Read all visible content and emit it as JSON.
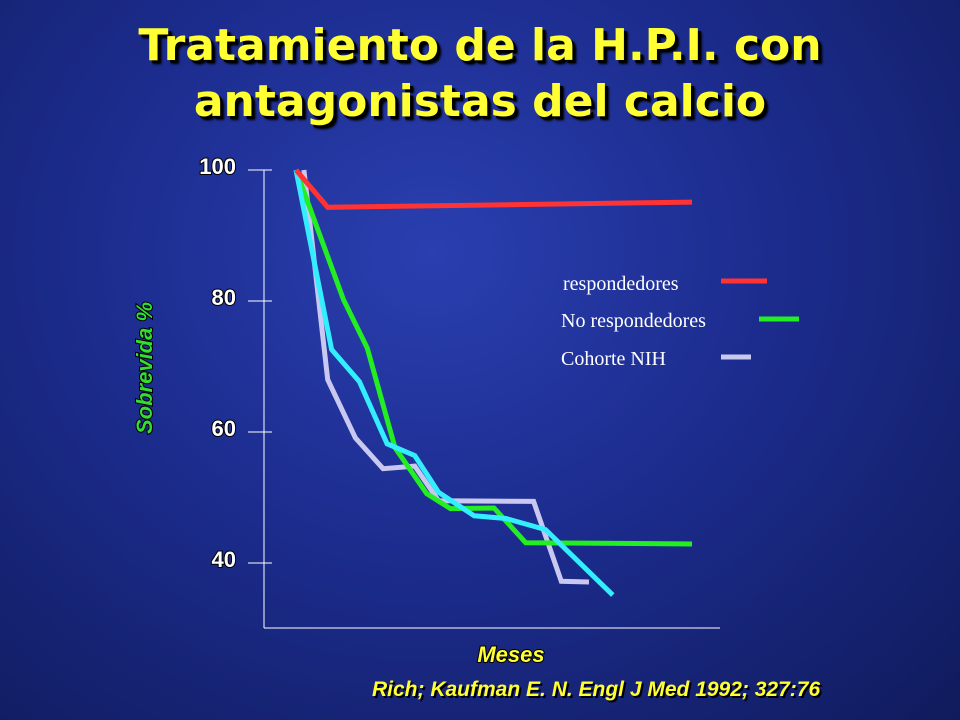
{
  "slide": {
    "title_line1": "Tratamiento de la H.P.I. con",
    "title_line2": "antagonistas del calcio",
    "citation": "Rich; Kaufman E. N. Engl J Med 1992; 327:76"
  },
  "chart_data": {
    "type": "line",
    "title": "",
    "xlabel": "Meses",
    "ylabel": "Sobrevida %",
    "ylabel_color": "#33dd33",
    "xlabel_color": "#ffff33",
    "y_ticks": [
      100,
      80,
      60,
      40
    ],
    "ylim": [
      30,
      100
    ],
    "xlim": [
      0,
      100
    ],
    "grid": false,
    "legend_placement": "right",
    "series": [
      {
        "name": "respondedores",
        "color": "#ff3333",
        "x": [
          0,
          8,
          100
        ],
        "y": [
          100,
          94.3,
          95.1
        ]
      },
      {
        "name": "No respondedores",
        "color": "#22ee22",
        "x": [
          0,
          12,
          18,
          25,
          33,
          39,
          50,
          58,
          100
        ],
        "y": [
          100,
          80.2,
          72.8,
          57.6,
          50.6,
          48.3,
          48.4,
          43.1,
          42.9
        ]
      },
      {
        "name": "Cohorte NIH",
        "color": "#c8c8f0",
        "x": [
          2,
          8,
          15,
          22,
          30,
          36,
          60,
          67,
          74
        ],
        "y": [
          100,
          68.0,
          59.1,
          54.4,
          54.8,
          49.5,
          49.4,
          37.2,
          37.1
        ]
      },
      {
        "name": "",
        "color": "#33eeff",
        "x": [
          0,
          9,
          16,
          23,
          30,
          36,
          45,
          53,
          63,
          80
        ],
        "y": [
          100,
          72.6,
          67.7,
          58.2,
          56.4,
          50.8,
          47.2,
          46.8,
          45.1,
          35.1
        ]
      }
    ]
  }
}
